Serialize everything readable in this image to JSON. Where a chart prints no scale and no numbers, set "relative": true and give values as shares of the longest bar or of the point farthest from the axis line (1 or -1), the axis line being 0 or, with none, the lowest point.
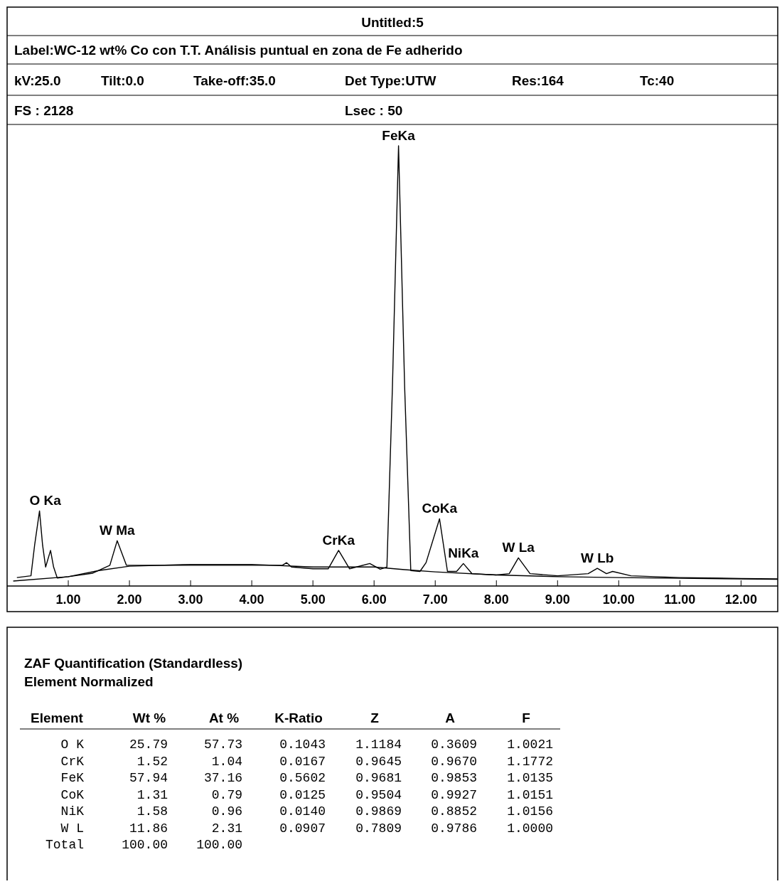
{
  "chart_data": [
    {
      "type": "line",
      "relative": true,
      "title": "Untitled:5",
      "subtitle": "Label:WC-12 wt% Co con T.T. Análisis puntual en zona de Fe adherido",
      "xlim": [
        0,
        12.6
      ],
      "xticks": [
        {
          "value": 1,
          "label": "1.00"
        },
        {
          "value": 2,
          "label": "2.00"
        },
        {
          "value": 3,
          "label": "3.00"
        },
        {
          "value": 4,
          "label": "4.00"
        },
        {
          "value": 5,
          "label": "5.00"
        },
        {
          "value": 6,
          "label": "6.00"
        },
        {
          "value": 7,
          "label": "7.00"
        },
        {
          "value": 8,
          "label": "8.00"
        },
        {
          "value": 9,
          "label": "9.00"
        },
        {
          "value": 10,
          "label": "10.00"
        },
        {
          "value": 11,
          "label": "11.00"
        },
        {
          "value": 12,
          "label": "12.00"
        }
      ],
      "grid": false,
      "marker": "none",
      "line_style": "solid",
      "tick_labels": "x",
      "series": [
        {
          "color": "#000000",
          "x": [
            0.16,
            0.39,
            0.45,
            0.53,
            0.58,
            0.63,
            0.71,
            0.76,
            0.82,
            1.0,
            1.4,
            1.68,
            1.8,
            1.95,
            2.5,
            3.0,
            3.5,
            4.0,
            4.5,
            4.57,
            4.65,
            5.0,
            5.25,
            5.42,
            5.6,
            5.93,
            6.1,
            6.21,
            6.3,
            6.4,
            6.5,
            6.6,
            6.75,
            6.85,
            7.07,
            7.2,
            7.35,
            7.46,
            7.6,
            8.0,
            8.21,
            8.36,
            8.55,
            9.0,
            9.5,
            9.65,
            9.8,
            9.9,
            10.2,
            11.0,
            12.0,
            12.6
          ],
          "values": [
            0.016,
            0.02,
            0.09,
            0.168,
            0.09,
            0.04,
            0.078,
            0.04,
            0.015,
            0.018,
            0.026,
            0.044,
            0.1,
            0.044,
            0.044,
            0.044,
            0.044,
            0.044,
            0.044,
            0.05,
            0.04,
            0.036,
            0.036,
            0.078,
            0.036,
            0.048,
            0.035,
            0.04,
            0.45,
            1.0,
            0.45,
            0.032,
            0.03,
            0.05,
            0.15,
            0.03,
            0.03,
            0.048,
            0.025,
            0.022,
            0.025,
            0.061,
            0.025,
            0.02,
            0.025,
            0.037,
            0.025,
            0.03,
            0.02,
            0.016,
            0.014,
            0.013
          ]
        },
        {
          "color": "#000000",
          "x": [
            0.1,
            1.0,
            1.5,
            2.0,
            3.0,
            4.0,
            5.0,
            6.0,
            6.5,
            7.0,
            8.0,
            9.0,
            10.0,
            12.6
          ],
          "values": [
            0.008,
            0.018,
            0.032,
            0.042,
            0.046,
            0.046,
            0.04,
            0.04,
            0.034,
            0.029,
            0.022,
            0.018,
            0.016,
            0.012
          ]
        }
      ],
      "annotations": [
        "kV:25.0",
        "Tilt:0.0",
        "Take-off:35.0",
        "Det Type:UTW",
        "Res:164",
        "Tc:40",
        "FS : 2128",
        "Lsec : 50",
        {
          "text": "O Ka",
          "x": 0.53,
          "y": 0.168
        },
        {
          "text": "W Ma",
          "x": 1.8,
          "y": 0.1
        },
        {
          "text": "CrKa",
          "x": 5.42,
          "y": 0.078
        },
        {
          "text": "FeKa",
          "x": 6.4,
          "y": 1.0
        },
        {
          "text": "CoKa",
          "x": 7.07,
          "y": 0.15
        },
        {
          "text": "NiKa",
          "x": 7.46,
          "y": 0.048
        },
        {
          "text": "W La",
          "x": 8.36,
          "y": 0.061
        },
        {
          "text": "W Lb",
          "x": 9.65,
          "y": 0.037
        }
      ]
    },
    {
      "type": "other",
      "title": "ZAF Quantification (Standardless)",
      "subtitle": "Element Normalized",
      "categories": [
        "Element",
        "Wt %",
        "At %",
        "K-Ratio",
        "Z",
        "A",
        "F"
      ],
      "y_categories": [
        "O K",
        "CrK",
        "FeK",
        "CoK",
        "NiK",
        "W L",
        "Total"
      ],
      "cell_labels": [
        [
          "25.79",
          "57.73",
          "0.1043",
          "1.1184",
          "0.3609",
          "1.0021"
        ],
        [
          "1.52",
          "1.04",
          "0.0167",
          "0.9645",
          "0.9670",
          "1.1772"
        ],
        [
          "57.94",
          "37.16",
          "0.5602",
          "0.9681",
          "0.9853",
          "1.0135"
        ],
        [
          "1.31",
          "0.79",
          "0.0125",
          "0.9504",
          "0.9927",
          "1.0151"
        ],
        [
          "1.58",
          "0.96",
          "0.0140",
          "0.9869",
          "0.8852",
          "1.0156"
        ],
        [
          "11.86",
          "2.31",
          "0.0907",
          "0.7809",
          "0.9786",
          "1.0000"
        ],
        [
          "100.00",
          "100.00",
          null,
          null,
          null,
          null
        ]
      ]
    }
  ]
}
